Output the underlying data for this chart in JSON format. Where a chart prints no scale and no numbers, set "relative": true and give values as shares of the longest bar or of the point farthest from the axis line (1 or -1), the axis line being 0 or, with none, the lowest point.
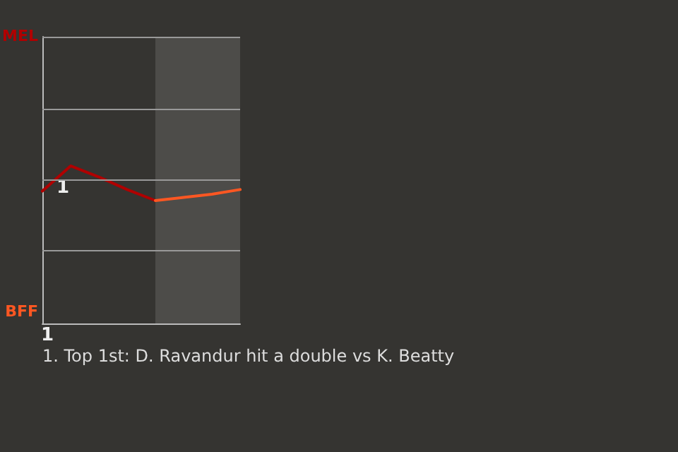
{
  "chart_data": {
    "type": "line",
    "relative": true,
    "categories": [
      null,
      null,
      null,
      null,
      null,
      null,
      null,
      null
    ],
    "series": [
      {
        "color": "#b00000",
        "values": [
          0.84,
          1,
          0.93,
          0.85,
          0.78,
          null,
          null,
          null
        ]
      },
      {
        "color": "#ff5722",
        "values": [
          null,
          null,
          null,
          null,
          0.78,
          0.8,
          0.82,
          0.85
        ]
      }
    ],
    "ref_lines": [
      {
        "axis": "y",
        "value": 0.455,
        "color": "#999999"
      },
      {
        "axis": "y",
        "value": 0.91,
        "color": "#999999"
      },
      {
        "axis": "y",
        "value": 1.365,
        "color": "#999999"
      },
      {
        "axis": "y",
        "value": 1.82,
        "color": "#999999"
      }
    ],
    "marker": "none",
    "line_style": "solid",
    "annotations": [
      "MEL",
      "BFF",
      "1",
      "1",
      "1. Top 1st: D. Ravandur hit a double vs K. Beatty"
    ]
  }
}
